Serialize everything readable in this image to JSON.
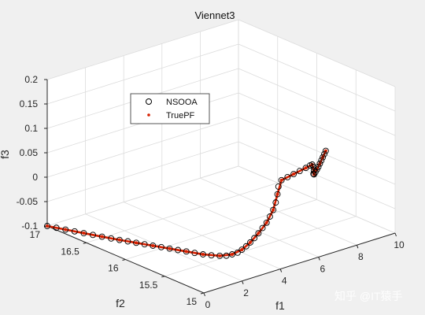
{
  "watermark": "知乎 @IT猿手",
  "chart_data": {
    "type": "scatter3d",
    "title": "Viennet3",
    "xlabel": "f1",
    "ylabel": "f2",
    "zlabel": "f3",
    "xlim": [
      0,
      10
    ],
    "ylim": [
      15,
      17
    ],
    "zlim": [
      -0.1,
      0.2
    ],
    "xticks": [
      "0",
      "2",
      "4",
      "6",
      "8",
      "10"
    ],
    "yticks": [
      "15",
      "15.5",
      "16",
      "16.5",
      "17"
    ],
    "zticks": [
      "-0.1",
      "-0.05",
      "0",
      "0.05",
      "0.1",
      "0.15",
      "0.2"
    ],
    "grid": true,
    "legend_position": "upper-left",
    "series": [
      {
        "name": "NSOOA",
        "marker": "open-circle",
        "color": "#000000",
        "points": [
          [
            0.0,
            17.0,
            -0.1
          ],
          [
            0.15,
            16.92,
            -0.1
          ],
          [
            0.3,
            16.84,
            -0.1
          ],
          [
            0.45,
            16.76,
            -0.1
          ],
          [
            0.6,
            16.68,
            -0.1
          ],
          [
            0.75,
            16.6,
            -0.1
          ],
          [
            0.9,
            16.52,
            -0.1
          ],
          [
            1.05,
            16.44,
            -0.1
          ],
          [
            1.2,
            16.37,
            -0.1
          ],
          [
            1.35,
            16.3,
            -0.1
          ],
          [
            1.5,
            16.23,
            -0.1
          ],
          [
            1.65,
            16.16,
            -0.1
          ],
          [
            1.8,
            16.09,
            -0.1
          ],
          [
            1.95,
            16.02,
            -0.1
          ],
          [
            2.1,
            15.95,
            -0.1
          ],
          [
            2.25,
            15.88,
            -0.1
          ],
          [
            2.4,
            15.81,
            -0.1
          ],
          [
            2.55,
            15.74,
            -0.1
          ],
          [
            2.7,
            15.67,
            -0.1
          ],
          [
            2.85,
            15.6,
            -0.099
          ],
          [
            3.0,
            15.53,
            -0.097
          ],
          [
            3.1,
            15.47,
            -0.094
          ],
          [
            3.2,
            15.42,
            -0.089
          ],
          [
            3.28,
            15.37,
            -0.083
          ],
          [
            3.34,
            15.33,
            -0.075
          ],
          [
            3.4,
            15.29,
            -0.066
          ],
          [
            3.45,
            15.25,
            -0.056
          ],
          [
            3.5,
            15.21,
            -0.045
          ],
          [
            3.55,
            15.17,
            -0.033
          ],
          [
            3.6,
            15.13,
            -0.02
          ],
          [
            3.65,
            15.09,
            -0.007
          ],
          [
            3.7,
            15.06,
            0.007
          ],
          [
            3.75,
            15.03,
            0.022
          ],
          [
            3.8,
            15.01,
            0.038
          ],
          [
            3.85,
            15.0,
            0.055
          ],
          [
            3.9,
            15.0,
            0.07
          ],
          [
            4.1,
            15.01,
            0.08
          ],
          [
            4.5,
            15.03,
            0.08
          ],
          [
            4.9,
            15.05,
            0.08
          ],
          [
            5.3,
            15.07,
            0.08
          ],
          [
            5.7,
            15.09,
            0.08
          ],
          [
            6.0,
            15.11,
            0.08
          ],
          [
            6.2,
            15.13,
            0.078
          ],
          [
            6.35,
            15.15,
            0.07
          ],
          [
            6.45,
            15.17,
            0.06
          ],
          [
            6.55,
            15.2,
            0.05
          ],
          [
            6.7,
            15.23,
            0.045
          ],
          [
            6.9,
            15.26,
            0.045
          ],
          [
            7.1,
            15.29,
            0.046
          ],
          [
            7.3,
            15.32,
            0.047
          ],
          [
            7.5,
            15.35,
            0.049
          ],
          [
            7.7,
            15.38,
            0.051
          ],
          [
            7.9,
            15.41,
            0.053
          ],
          [
            8.1,
            15.44,
            0.055
          ],
          [
            8.3,
            15.47,
            0.057
          ]
        ]
      },
      {
        "name": "TruePF",
        "marker": "dot",
        "color": "#d62000",
        "points": [
          [
            0.0,
            17.0,
            -0.1
          ],
          [
            0.3,
            16.84,
            -0.1
          ],
          [
            0.6,
            16.68,
            -0.1
          ],
          [
            0.9,
            16.52,
            -0.1
          ],
          [
            1.2,
            16.37,
            -0.1
          ],
          [
            1.5,
            16.23,
            -0.1
          ],
          [
            1.8,
            16.09,
            -0.1
          ],
          [
            2.1,
            15.95,
            -0.1
          ],
          [
            2.4,
            15.81,
            -0.1
          ],
          [
            2.7,
            15.67,
            -0.1
          ],
          [
            3.0,
            15.53,
            -0.097
          ],
          [
            3.2,
            15.42,
            -0.089
          ],
          [
            3.34,
            15.33,
            -0.075
          ],
          [
            3.45,
            15.25,
            -0.056
          ],
          [
            3.55,
            15.17,
            -0.033
          ],
          [
            3.65,
            15.09,
            -0.007
          ],
          [
            3.75,
            15.03,
            0.022
          ],
          [
            3.85,
            15.0,
            0.055
          ],
          [
            4.1,
            15.01,
            0.08
          ],
          [
            4.9,
            15.05,
            0.08
          ],
          [
            5.7,
            15.09,
            0.08
          ],
          [
            6.2,
            15.13,
            0.078
          ],
          [
            6.45,
            15.17,
            0.06
          ],
          [
            6.7,
            15.23,
            0.045
          ],
          [
            7.1,
            15.29,
            0.046
          ],
          [
            7.5,
            15.35,
            0.049
          ],
          [
            7.9,
            15.41,
            0.053
          ],
          [
            8.3,
            15.47,
            0.057
          ]
        ]
      }
    ]
  }
}
